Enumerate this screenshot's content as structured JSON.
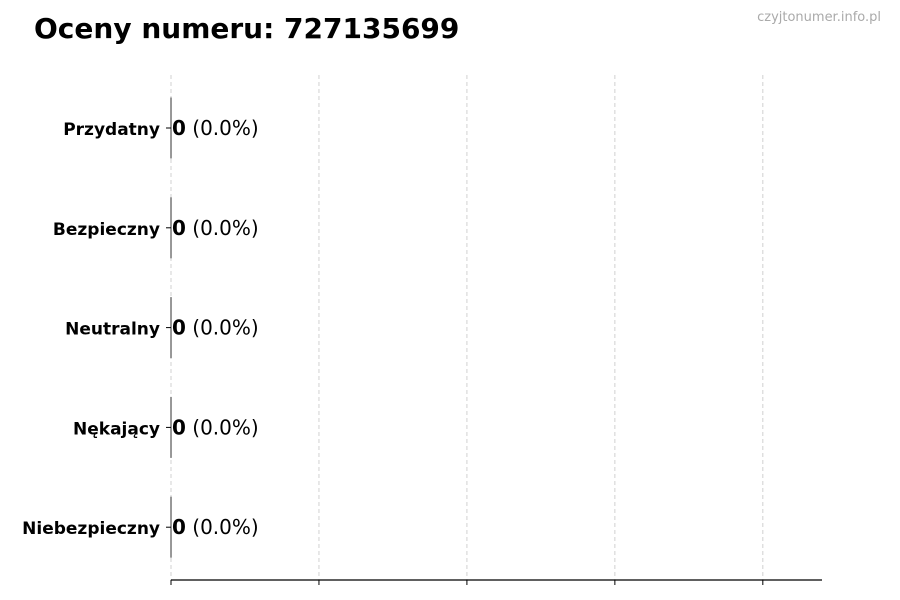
{
  "chart_data": {
    "type": "bar",
    "orientation": "horizontal",
    "title": "Oceny numeru: 727135699",
    "categories": [
      "Przydatny",
      "Bezpieczny",
      "Neutralny",
      "Nękający",
      "Niebezpieczny"
    ],
    "values": [
      0,
      0,
      0,
      0,
      0
    ],
    "data_labels": [
      {
        "count": "0",
        "percent": "(0.0%)"
      },
      {
        "count": "0",
        "percent": "(0.0%)"
      },
      {
        "count": "0",
        "percent": "(0.0%)"
      },
      {
        "count": "0",
        "percent": "(0.0%)"
      },
      {
        "count": "0",
        "percent": "(0.0%)"
      }
    ],
    "xlabel": "",
    "ylabel": "",
    "xlim": [
      0,
      4.4
    ],
    "x_ticks": [
      0,
      1,
      2,
      3,
      4
    ],
    "x_tick_labels_shown": false,
    "grid": "x dashed",
    "bar_edge_color": "#333333"
  },
  "watermark": "czyjtonumer.info.pl"
}
